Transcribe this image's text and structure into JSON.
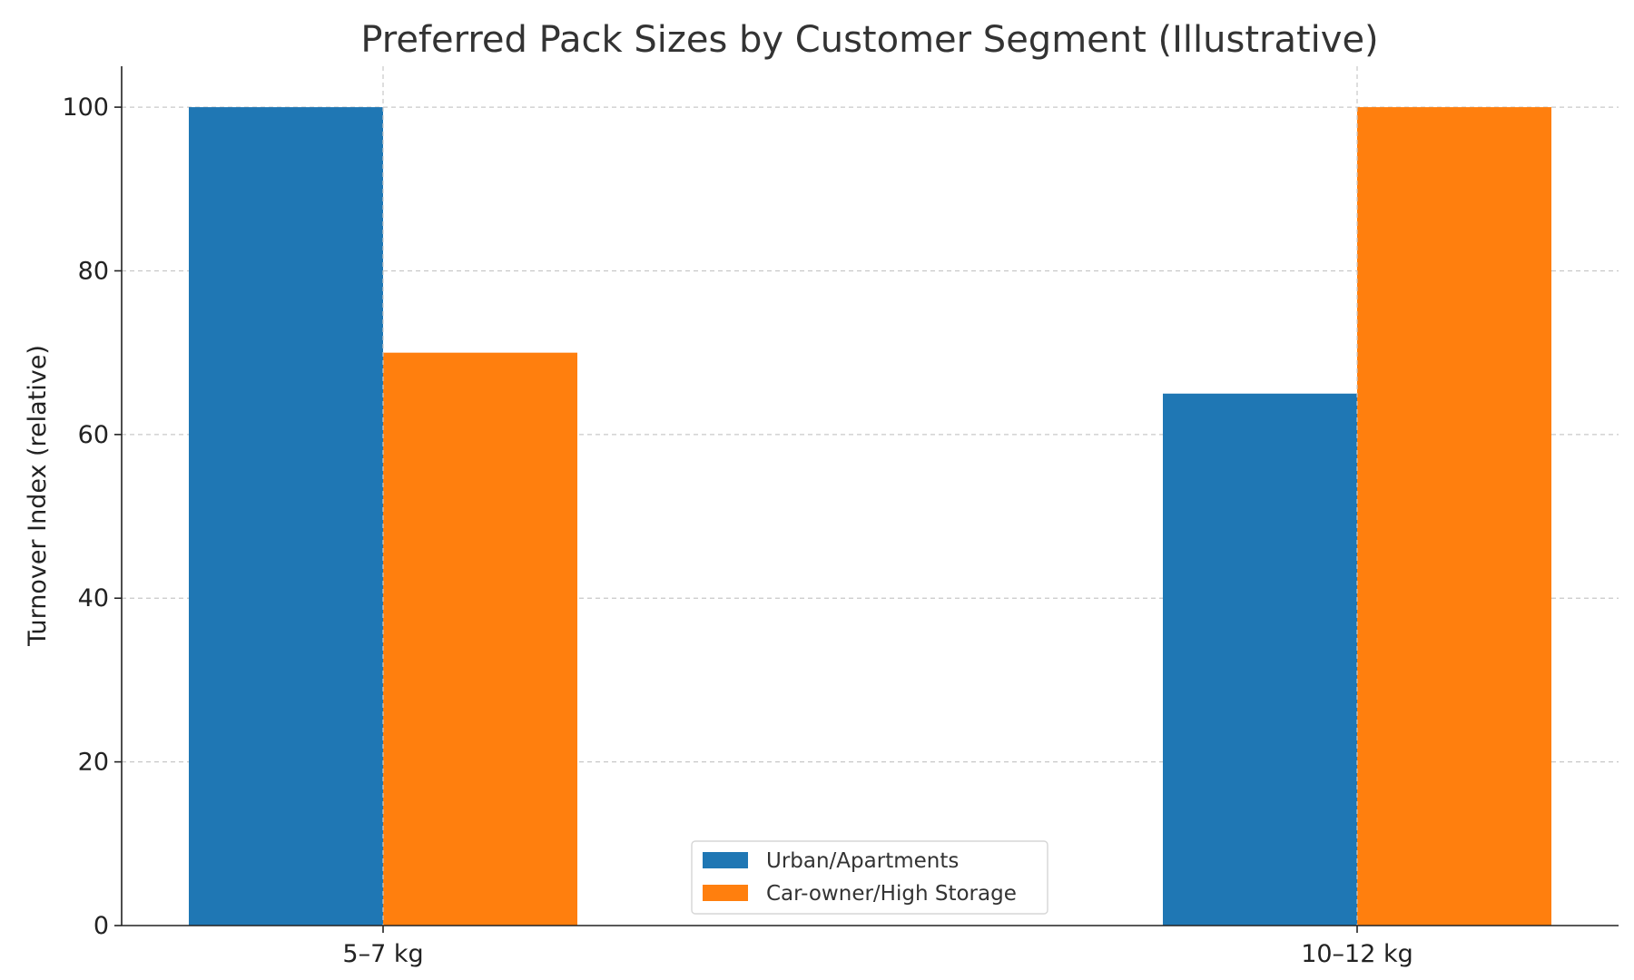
{
  "chart_data": {
    "type": "bar",
    "title": "Preferred Pack Sizes by Customer Segment (Illustrative)",
    "xlabel": "",
    "ylabel": "Turnover Index (relative)",
    "categories": [
      "5–7 kg",
      "10–12 kg"
    ],
    "series": [
      {
        "name": "Urban/Apartments",
        "values": [
          100,
          65
        ],
        "color": "#1f77b4"
      },
      {
        "name": "Car-owner/High Storage",
        "values": [
          70,
          100
        ],
        "color": "#ff7f0e"
      }
    ],
    "ylim": [
      0,
      105
    ],
    "yticks": [
      0,
      20,
      40,
      60,
      80,
      100
    ],
    "grid": true,
    "legend_position": "bottom-center"
  }
}
